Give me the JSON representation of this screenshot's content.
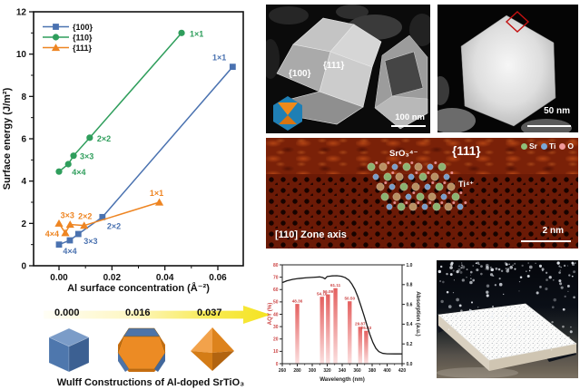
{
  "figure": {
    "background": "#ffffff"
  },
  "chart_data": [
    {
      "id": "surface-energy-plot",
      "type": "scatter-line",
      "title": "",
      "xlabel": "Al surface concentration (Å⁻²)",
      "ylabel": "Surface energy (J/m²)",
      "xlim": [
        -0.0096,
        0.0696
      ],
      "ylim": [
        0,
        12
      ],
      "xticks": [
        {
          "v": 0.0,
          "label": "0.00"
        },
        {
          "v": 0.02,
          "label": "0.02"
        },
        {
          "v": 0.04,
          "label": "0.04"
        },
        {
          "v": 0.06,
          "label": "0.06"
        }
      ],
      "xminor": [
        0.01,
        0.03,
        0.05
      ],
      "yticks": [
        {
          "v": 0,
          "label": "0"
        },
        {
          "v": 2,
          "label": "2"
        },
        {
          "v": 4,
          "label": "4"
        },
        {
          "v": 6,
          "label": "6"
        },
        {
          "v": 8,
          "label": "8"
        },
        {
          "v": 10,
          "label": "10"
        },
        {
          "v": 12,
          "label": "12"
        }
      ],
      "yminor": [
        1,
        3,
        5,
        7,
        9,
        11
      ],
      "legend_position": "top-left",
      "grid": false,
      "series": [
        {
          "name": "{100}",
          "color": "#4a72b0",
          "marker": "square",
          "points": [
            {
              "x": 0.0,
              "y": 1.0
            },
            {
              "x": 0.0041,
              "y": 1.2,
              "label": "4×4",
              "dx": 0,
              "dy": 15,
              "anchor": "middle"
            },
            {
              "x": 0.0073,
              "y": 1.5,
              "label": "3×3",
              "dx": 6,
              "dy": 11,
              "anchor": "start"
            },
            {
              "x": 0.0164,
              "y": 2.3,
              "label": "2×2",
              "dx": 5,
              "dy": 13,
              "anchor": "start"
            },
            {
              "x": 0.0656,
              "y": 9.4,
              "label": "1×1",
              "dx": -7,
              "dy": -7,
              "anchor": "end"
            }
          ]
        },
        {
          "name": "{110}",
          "color": "#2f9e5c",
          "marker": "circle",
          "points": [
            {
              "x": 0.0,
              "y": 4.45
            },
            {
              "x": 0.0035,
              "y": 4.8,
              "label": "4×4",
              "dx": 4,
              "dy": 12,
              "anchor": "start"
            },
            {
              "x": 0.0055,
              "y": 5.2,
              "label": "3×3",
              "dx": 7,
              "dy": 4,
              "anchor": "start"
            },
            {
              "x": 0.0116,
              "y": 6.05,
              "label": "2×2",
              "dx": 8,
              "dy": 4,
              "anchor": "start"
            },
            {
              "x": 0.0463,
              "y": 11.0,
              "label": "1×1",
              "dx": 9,
              "dy": 4,
              "anchor": "start"
            }
          ]
        },
        {
          "name": "{111}",
          "color": "#ee8522",
          "marker": "triangle",
          "points": [
            {
              "x": 0.0,
              "y": 2.0
            },
            {
              "x": 0.0024,
              "y": 1.55,
              "label": "4×4",
              "dx": -7,
              "dy": 4,
              "anchor": "end"
            },
            {
              "x": 0.0042,
              "y": 1.95,
              "label": "3×3",
              "dx": -3,
              "dy": -7,
              "anchor": "middle"
            },
            {
              "x": 0.0095,
              "y": 1.9,
              "label": "2×2",
              "dx": 1,
              "dy": -7,
              "anchor": "middle"
            },
            {
              "x": 0.0379,
              "y": 3.0,
              "label": "1×1",
              "dx": -3,
              "dy": -7,
              "anchor": "middle"
            }
          ]
        }
      ]
    },
    {
      "id": "aqy-plot",
      "type": "bar+line",
      "xlabel": "Wavelength (nm)",
      "ylabel_left": "AQY (%)",
      "ylabel_right": "Absorption (a.u.)",
      "xlim": [
        260,
        420
      ],
      "ylim_left": [
        0,
        80
      ],
      "ylim_right": [
        0.0,
        1.0
      ],
      "xticks": [
        260,
        280,
        300,
        320,
        340,
        360,
        380,
        400,
        420
      ],
      "yticks_left": [
        0,
        10,
        20,
        30,
        40,
        50,
        60,
        70,
        80
      ],
      "yticks_right": [
        "0.0",
        "0.2",
        "0.4",
        "0.6",
        "0.8",
        "1.0"
      ],
      "bars": [
        {
          "wavelength": 280,
          "aqy": 48.36,
          "label": "48.36"
        },
        {
          "wavelength": 313,
          "aqy": 54.18,
          "label": "54.18"
        },
        {
          "wavelength": 321,
          "aqy": 56.09,
          "label": "56.09"
        },
        {
          "wavelength": 331,
          "aqy": 61.11,
          "label": "61.11"
        },
        {
          "wavelength": 350,
          "aqy": 50.5,
          "label": "50.50"
        },
        {
          "wavelength": 364,
          "aqy": 29.87,
          "label": "29.87"
        },
        {
          "wavelength": 372,
          "aqy": 26.63,
          "label": "26.63"
        }
      ],
      "absorption_curve": [
        [
          260,
          0.82
        ],
        [
          266,
          0.838
        ],
        [
          274,
          0.853
        ],
        [
          282,
          0.862
        ],
        [
          292,
          0.869
        ],
        [
          302,
          0.874
        ],
        [
          310,
          0.878
        ],
        [
          314,
          0.872
        ],
        [
          317,
          0.858
        ],
        [
          320,
          0.882
        ],
        [
          326,
          0.888
        ],
        [
          333,
          0.89
        ],
        [
          339,
          0.884
        ],
        [
          344,
          0.871
        ],
        [
          349,
          0.845
        ],
        [
          353,
          0.805
        ],
        [
          357,
          0.75
        ],
        [
          361,
          0.675
        ],
        [
          365,
          0.585
        ],
        [
          369,
          0.49
        ],
        [
          373,
          0.39
        ],
        [
          377,
          0.295
        ],
        [
          381,
          0.215
        ],
        [
          385,
          0.155
        ],
        [
          389,
          0.122
        ],
        [
          394,
          0.105
        ],
        [
          400,
          0.1
        ],
        [
          410,
          0.099
        ],
        [
          420,
          0.099
        ]
      ],
      "colors": {
        "bar_top": "#e4605f",
        "bar_bottom": "#fbdfdf",
        "accent": "#cc4545",
        "curve": "#1a1a1a"
      }
    }
  ],
  "wulff": {
    "arrow_values": [
      "0.000",
      "0.016",
      "0.037"
    ],
    "caption": "Wulff Constructions of Al-doped SrTiO₃",
    "shapes": [
      "cube",
      "truncated-polyhedron",
      "octahedron"
    ],
    "cube_color": "#4e77ad",
    "octahedron_color": "#e8861f",
    "arrow_start_color": "#fffef6",
    "arrow_end_color": "#f4e320"
  },
  "sem_a": {
    "facet_labels": [
      "{100}",
      "{111}"
    ],
    "scale_bar": "100 nm"
  },
  "sem_b": {
    "scale_bar": "50 nm"
  },
  "hrtem": {
    "label_sro3": "SrO₃⁴⁻",
    "label_facet": "{111}",
    "label_ti": "Ti⁴⁺",
    "label_zone": "[110] Zone axis",
    "scale_bar": "2 nm",
    "legend": [
      {
        "label": "Sr",
        "color": "#8fbf7a"
      },
      {
        "label": "Ti",
        "color": "#7aa8d8"
      },
      {
        "label": "O",
        "color": "#f0989a"
      }
    ]
  }
}
